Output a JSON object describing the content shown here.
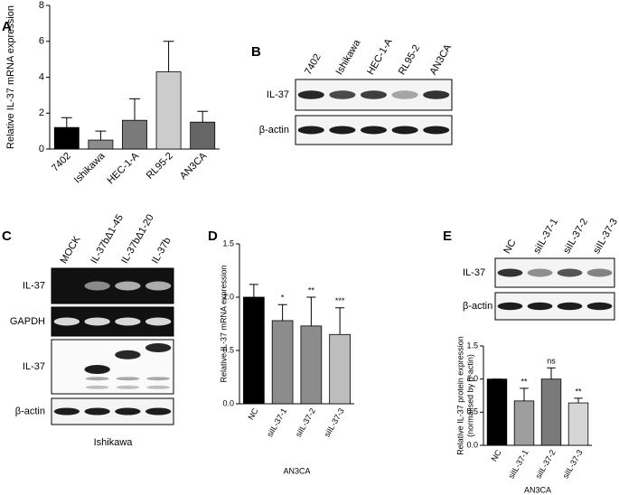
{
  "panel_labels": [
    "A",
    "B",
    "C",
    "D",
    "E"
  ],
  "chart_data": [
    {
      "type": "bar",
      "ylabel": "Relative IL-37 mRNA expression",
      "categories": [
        "7402",
        "Ishikawa",
        "HEC-1-A",
        "RL95-2",
        "AN3CA"
      ],
      "values": [
        1.2,
        0.5,
        1.6,
        4.3,
        1.5
      ],
      "errors": [
        0.55,
        0.5,
        1.2,
        1.7,
        0.6
      ],
      "colors": [
        "#000000",
        "#8c8c8c",
        "#7a7a7a",
        "#cccccc",
        "#666666"
      ],
      "ylim": [
        0,
        8
      ],
      "yticks": [
        0,
        2,
        4,
        6,
        8
      ]
    },
    {
      "type": "bar",
      "ylabel": "Relative IL-37 mRNA expression",
      "xlabel": "AN3CA",
      "categories": [
        "NC",
        "siIL-37-1",
        "siIL-37-2",
        "siIL-37-3"
      ],
      "values": [
        1.0,
        0.78,
        0.73,
        0.65
      ],
      "errors": [
        0.12,
        0.15,
        0.27,
        0.25
      ],
      "annotations": [
        null,
        "*",
        "**",
        "***"
      ],
      "colors": [
        "#000000",
        "#8c8c8c",
        "#8c8c8c",
        "#bdbdbd"
      ],
      "ylim": [
        0,
        1.5
      ],
      "yticks": [
        {
          "value": 0,
          "label": "0.0"
        },
        {
          "value": 0.5,
          "label": "0.5"
        },
        {
          "value": 1,
          "label": "1.0"
        },
        {
          "value": 1.5,
          "label": "1.5"
        }
      ]
    },
    {
      "type": "bar",
      "ylabel": [
        "Relative IL-37 protein expression",
        "(normalised by β-actin)"
      ],
      "xlabel": "AN3CA",
      "categories": [
        "NC",
        "siIL-37-1",
        "siIL-37-2",
        "siIL-37-3"
      ],
      "values": [
        1.0,
        0.67,
        1.0,
        0.64
      ],
      "errors": [
        0,
        0.19,
        0.17,
        0.07
      ],
      "annotations": [
        null,
        "**",
        "ns",
        "**"
      ],
      "colors": [
        "#000000",
        "#9e9e9e",
        "#7a7a7a",
        "#d6d6d6"
      ],
      "ylim": [
        0,
        1.5
      ],
      "yticks": [
        {
          "value": 0,
          "label": "0.0"
        },
        {
          "value": 0.5,
          "label": "0.5"
        },
        {
          "value": 1,
          "label": "1.0"
        },
        {
          "value": 1.5,
          "label": "1.5"
        }
      ]
    }
  ],
  "blots": [
    {
      "lanes": [
        "7402",
        "Ishikawa",
        "HEC-1-A",
        "RL95-2",
        "AN3CA"
      ],
      "rows": [
        "IL-37",
        "β-actin"
      ]
    },
    {
      "lanes": [
        "MOCK",
        "IL-37bΔ1-45",
        "IL-37bΔ1-20",
        "IL-37b"
      ],
      "rows": [
        "IL-37",
        "GAPDH",
        "IL-37",
        "β-actin"
      ],
      "caption": "Ishikawa"
    },
    {
      "lanes": [
        "NC",
        "siIL-37-1",
        "siIL-37-2",
        "siIL-37-3"
      ],
      "rows": [
        "IL-37",
        "β-actin"
      ]
    }
  ]
}
